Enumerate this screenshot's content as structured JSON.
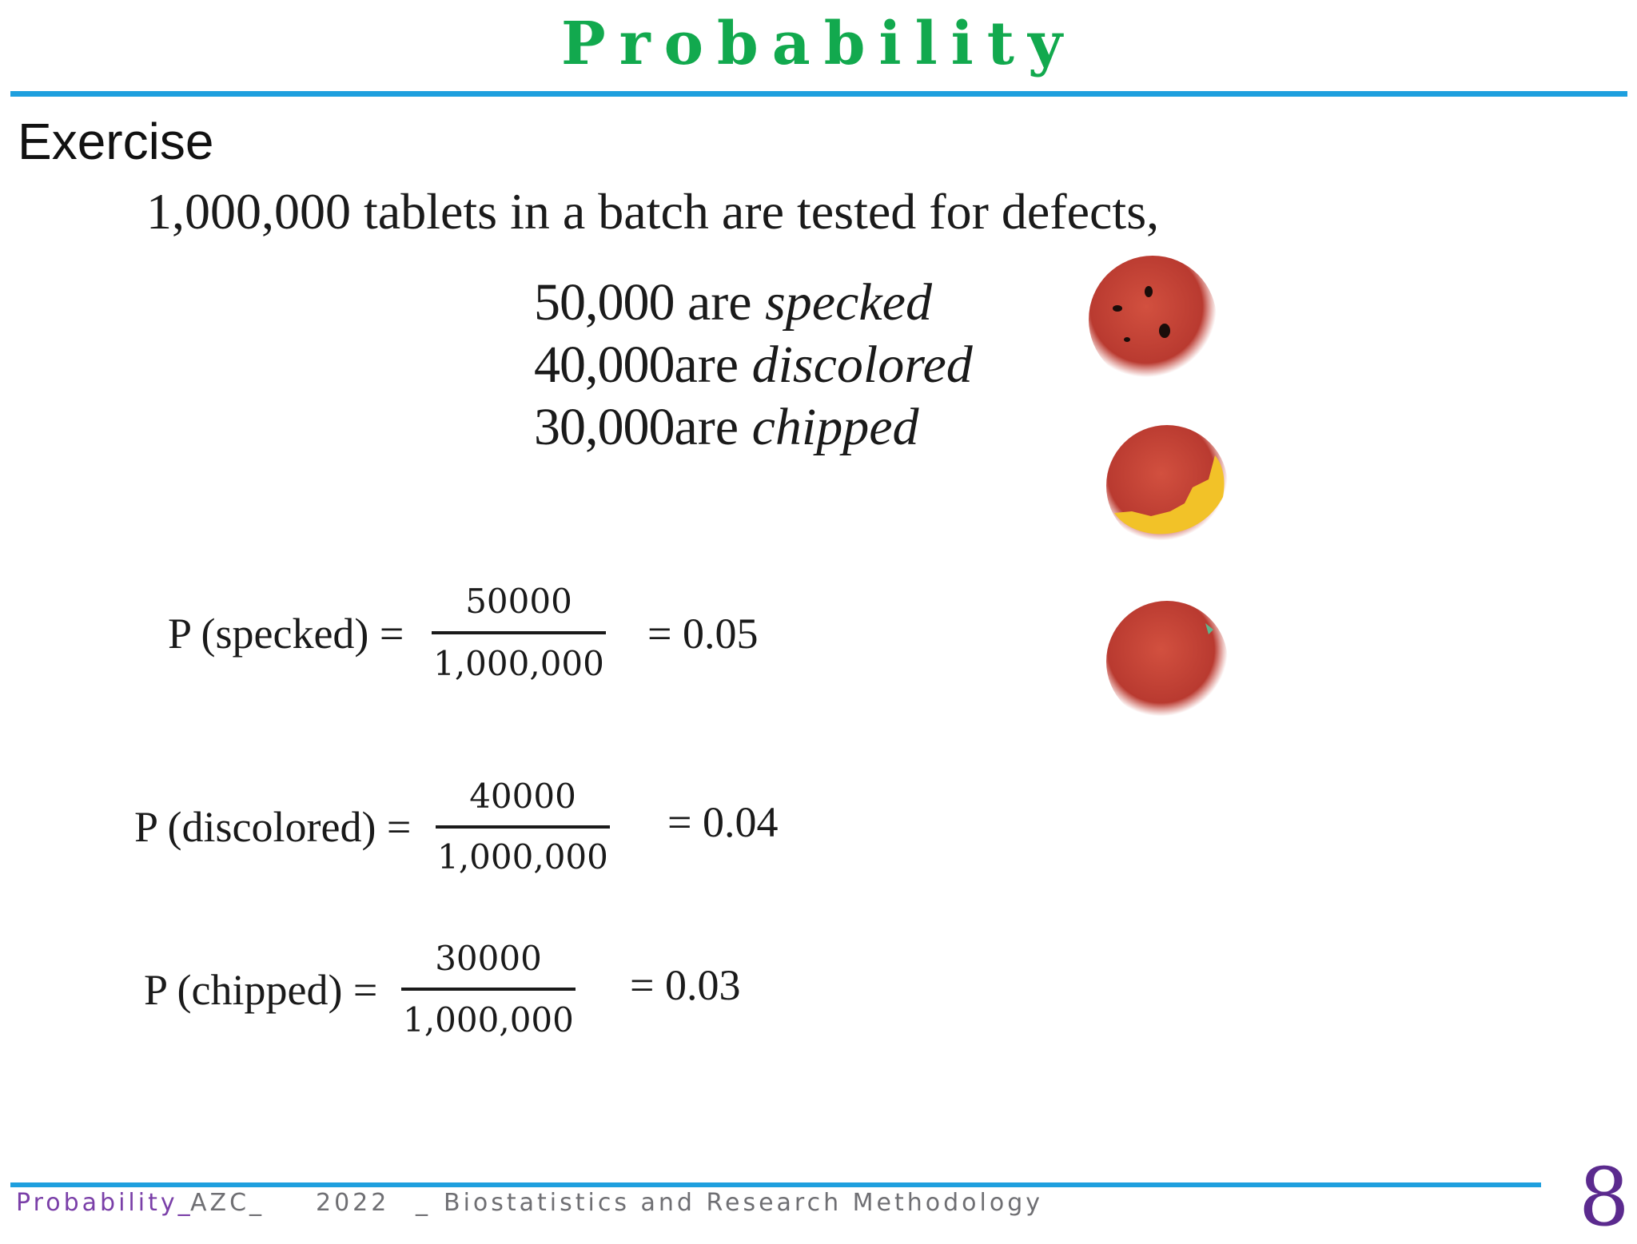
{
  "slide": {
    "title": "Probability",
    "heading": "Exercise",
    "intro": "1,000,000 tablets in a batch are tested for defects,",
    "counts": [
      {
        "number": "50,000",
        "verb": " are ",
        "defect": "specked"
      },
      {
        "number": "40,000",
        "verb": "are ",
        "defect": "discolored"
      },
      {
        "number": "30,000",
        "verb": "are ",
        "defect": "chipped"
      }
    ],
    "equations": [
      {
        "label": "P (specked) =",
        "numerator": "50000",
        "denominator": "1,000,000",
        "result": "= 0.05"
      },
      {
        "label": "P (discolored) =",
        "numerator": "40000",
        "denominator": "1,000,000",
        "result": "= 0.04"
      },
      {
        "label": "P (chipped) =",
        "numerator": "30000",
        "denominator": "1,000,000",
        "result": "= 0.03"
      }
    ],
    "tablet_icons": [
      "specked-tablet-icon",
      "chipped-tablet-icon",
      "plain-tablet-icon"
    ]
  },
  "footer": {
    "part1": "Probability_",
    "part2": " AZC_",
    "part3": "2022",
    "part4": "_",
    "part5": "Biostatistics and Research Methodology",
    "page_number": "8"
  },
  "colors": {
    "title": "#12a94e",
    "rule": "#1e9fde",
    "tablet": "#c8443a",
    "chip": "#f2c228",
    "page_number": "#5b2a8e"
  }
}
